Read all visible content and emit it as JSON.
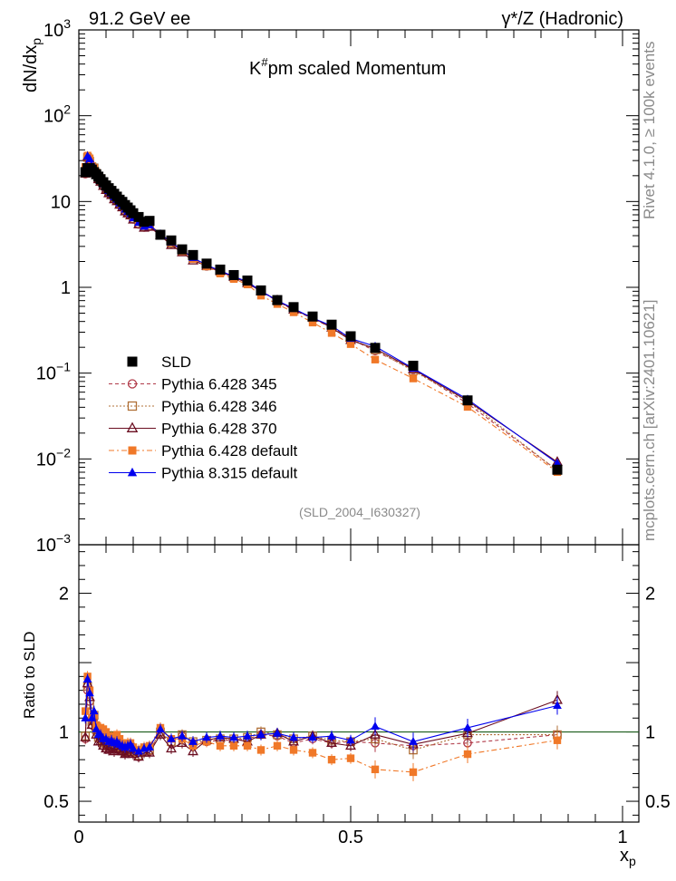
{
  "chart_data": {
    "type": "line",
    "header": {
      "left": "91.2 GeV ee",
      "right": "γ*/Z (Hadronic)"
    },
    "title": "K#pm scaled Momentum",
    "title_parts": {
      "base": "K",
      "sup": "#",
      "rest": "pm scaled Momentum"
    },
    "xlabel": "x",
    "xlabel_sub": "p",
    "ylabel": "dN/dx",
    "ylabel_sub": "p",
    "ratio_ylabel": "Ratio to SLD",
    "side_text_top": "Rivet 4.1.0, ≥ 100k events",
    "side_text_bottom": "mcplots.cern.ch [arXiv:2401.10621]",
    "analysis_tag": "(SLD_2004_I630327)",
    "xlim": [
      0,
      1.03
    ],
    "ylim": [
      0.001,
      1000
    ],
    "yscale": "log",
    "ratio_ylim": [
      0.35,
      2.35
    ],
    "x_ticks": [
      "0",
      "0.5",
      "1"
    ],
    "y_ticks": [
      {
        "base": "10",
        "exp": "3"
      },
      {
        "base": "10",
        "exp": "2"
      },
      {
        "base": "10",
        "exp": ""
      },
      {
        "base": "1",
        "exp": ""
      },
      {
        "base": "10",
        "exp": "−1"
      },
      {
        "base": "10",
        "exp": "−2"
      },
      {
        "base": "10",
        "exp": "−3"
      }
    ],
    "ratio_ticks": [
      "0.5",
      "1",
      "2"
    ],
    "x": [
      0.012,
      0.016,
      0.02,
      0.024,
      0.028,
      0.032,
      0.036,
      0.04,
      0.045,
      0.05,
      0.055,
      0.06,
      0.065,
      0.07,
      0.075,
      0.08,
      0.085,
      0.09,
      0.095,
      0.1,
      0.11,
      0.12,
      0.13,
      0.15,
      0.17,
      0.19,
      0.21,
      0.235,
      0.26,
      0.285,
      0.31,
      0.335,
      0.365,
      0.395,
      0.43,
      0.465,
      0.5,
      0.545,
      0.615,
      0.715,
      0.88
    ],
    "series": [
      {
        "name": "SLD",
        "color": "#000000",
        "marker": "square",
        "values": [
          22.0,
          24.5,
          24.5,
          23.5,
          22.0,
          20.8,
          19.5,
          18.2,
          16.8,
          15.4,
          14.3,
          13.3,
          12.3,
          11.4,
          10.5,
          9.9,
          9.1,
          8.5,
          7.9,
          7.3,
          6.6,
          5.8,
          5.95,
          4.1,
          3.52,
          2.77,
          2.38,
          1.89,
          1.61,
          1.39,
          1.2,
          0.92,
          0.71,
          0.588,
          0.457,
          0.367,
          0.269,
          0.197,
          0.122,
          0.0481,
          0.00749
        ]
      },
      {
        "name": "Pythia 6.428 345",
        "color": "#b03a48",
        "marker": "circle-open",
        "dash": "4,3",
        "ratio": [
          0.95,
          1.3,
          1.22,
          1.05,
          1.1,
          1.0,
          0.95,
          0.95,
          0.9,
          0.9,
          0.88,
          0.9,
          0.88,
          0.9,
          0.88,
          0.87,
          0.85,
          0.86,
          0.88,
          0.85,
          0.82,
          0.86,
          0.86,
          1.0,
          0.92,
          0.97,
          0.92,
          0.93,
          0.94,
          0.94,
          0.95,
          0.98,
          0.97,
          0.92,
          0.95,
          0.92,
          0.93,
          0.92,
          0.9,
          0.92,
          0.98
        ]
      },
      {
        "name": "Pythia 6.428 346",
        "color": "#b07038",
        "marker": "square-open",
        "dash": "2,2",
        "ratio": [
          0.97,
          1.33,
          1.2,
          1.08,
          1.12,
          1.02,
          0.96,
          0.96,
          0.92,
          0.92,
          0.9,
          0.92,
          0.9,
          0.91,
          0.89,
          0.88,
          0.86,
          0.87,
          0.89,
          0.86,
          0.83,
          0.87,
          0.87,
          1.0,
          0.93,
          0.98,
          0.93,
          0.94,
          0.95,
          0.95,
          0.96,
          1.0,
          0.98,
          0.95,
          0.97,
          0.94,
          0.93,
          0.95,
          0.87,
          0.98,
          0.98
        ]
      },
      {
        "name": "Pythia 6.428 370",
        "color": "#6a0d20",
        "marker": "triangle-open",
        "dash": "",
        "ratio": [
          0.96,
          1.35,
          1.25,
          1.05,
          1.08,
          0.98,
          0.93,
          0.93,
          0.9,
          0.88,
          0.87,
          0.89,
          0.86,
          0.88,
          0.87,
          0.86,
          0.84,
          0.85,
          0.87,
          0.84,
          0.82,
          0.85,
          0.85,
          0.98,
          0.88,
          0.92,
          0.86,
          0.94,
          0.96,
          0.95,
          0.93,
          0.98,
          0.99,
          0.93,
          0.97,
          0.92,
          0.9,
          0.98,
          0.91,
          0.99,
          1.23
        ]
      },
      {
        "name": "Pythia 6.428 default",
        "color": "#f07828",
        "marker": "square",
        "dash": "6,3,2,3",
        "ratio": [
          1.15,
          1.4,
          1.3,
          1.1,
          1.12,
          1.05,
          1.02,
          1.03,
          1.02,
          1.0,
          0.97,
          0.97,
          0.95,
          0.98,
          0.95,
          0.92,
          0.9,
          0.92,
          0.92,
          0.89,
          0.87,
          0.89,
          0.9,
          1.03,
          0.95,
          0.95,
          0.9,
          0.93,
          0.9,
          0.9,
          0.9,
          0.87,
          0.9,
          0.87,
          0.85,
          0.8,
          0.81,
          0.73,
          0.71,
          0.84,
          0.94
        ]
      },
      {
        "name": "Pythia 8.315 default",
        "color": "#0000ee",
        "marker": "triangle",
        "dash": "",
        "ratio": [
          1.1,
          1.38,
          1.28,
          1.1,
          1.15,
          1.02,
          0.98,
          0.98,
          0.95,
          0.95,
          0.93,
          0.94,
          0.92,
          0.93,
          0.91,
          0.9,
          0.89,
          0.9,
          0.91,
          0.88,
          0.86,
          0.88,
          0.89,
          1.02,
          0.95,
          0.97,
          0.93,
          0.96,
          0.97,
          0.96,
          0.97,
          0.98,
          0.99,
          0.96,
          0.96,
          0.97,
          0.94,
          1.04,
          0.93,
          1.03,
          1.19
        ]
      }
    ]
  }
}
